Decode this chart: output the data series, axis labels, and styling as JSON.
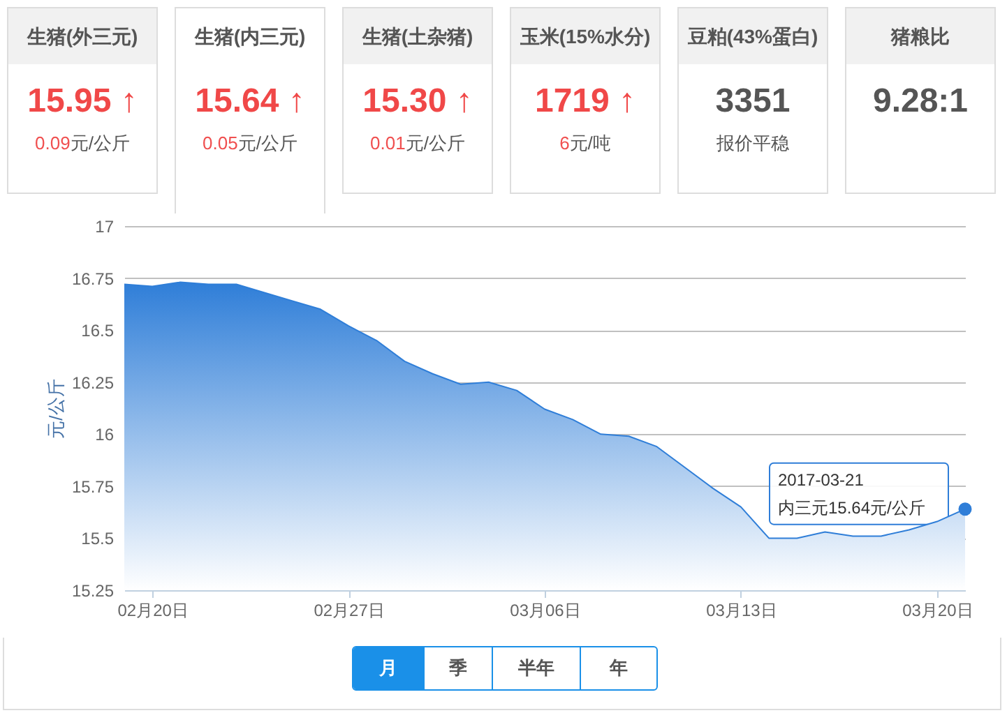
{
  "chart_data": [
    {
      "type": "other",
      "colors": [
        "#f04848",
        "#f04848",
        "#f04848",
        "#f04848",
        "#555555",
        "#555555"
      ],
      "annotations": [
        "生猪(外三元)",
        "15.95 ↑",
        "0.09元/公斤",
        "生猪(内三元)",
        "15.64 ↑",
        "0.05元/公斤",
        "生猪(土杂猪)",
        "15.30 ↑",
        "0.01元/公斤",
        "玉米(15%水分)",
        "1719 ↑",
        "6元/吨",
        "豆粕(43%蛋白)",
        "3351",
        "报价平稳",
        "猪粮比",
        "9.28:1"
      ]
    },
    {
      "type": "area",
      "ylabel": "元/公斤",
      "grid": "y",
      "x": [
        "2017-02-19",
        "2017-02-20",
        "2017-02-21",
        "2017-02-22",
        "2017-02-23",
        "2017-02-24",
        "2017-02-25",
        "2017-02-26",
        "2017-02-27",
        "2017-02-28",
        "2017-03-01",
        "2017-03-02",
        "2017-03-03",
        "2017-03-04",
        "2017-03-05",
        "2017-03-06",
        "2017-03-07",
        "2017-03-08",
        "2017-03-09",
        "2017-03-10",
        "2017-03-11",
        "2017-03-12",
        "2017-03-13",
        "2017-03-14",
        "2017-03-15",
        "2017-03-16",
        "2017-03-17",
        "2017-03-18",
        "2017-03-19",
        "2017-03-20",
        "2017-03-21"
      ],
      "series": [
        {
          "color": "#2f7ed8",
          "values": [
            16.72,
            16.71,
            16.73,
            16.72,
            16.72,
            16.68,
            16.64,
            16.6,
            16.52,
            16.45,
            16.35,
            16.29,
            16.24,
            16.25,
            16.21,
            16.12,
            16.07,
            16.0,
            15.99,
            15.94,
            15.84,
            15.74,
            15.65,
            15.5,
            15.5,
            15.53,
            15.51,
            15.51,
            15.54,
            15.58,
            15.64
          ]
        }
      ],
      "xlim": [
        "2017-02-19",
        "2017-03-21"
      ],
      "xticks": [
        {
          "value": "2017-02-20",
          "label": "02月20日"
        },
        {
          "value": "2017-02-27",
          "label": "02月27日"
        },
        {
          "value": "2017-03-06",
          "label": "03月06日"
        },
        {
          "value": "2017-03-13",
          "label": "03月13日"
        },
        {
          "value": "2017-03-20",
          "label": "03月20日"
        }
      ],
      "ylim": [
        15.25,
        17
      ],
      "yticks": [
        15.25,
        15.5,
        15.75,
        16,
        16.25,
        16.5,
        16.75,
        17
      ],
      "annotations": [
        "2017-03-21",
        {
          "text": "内三元15.64元/公斤",
          "x": "2017-03-21",
          "y": 15.64
        },
        "月",
        "季",
        "半年",
        "年"
      ]
    }
  ]
}
